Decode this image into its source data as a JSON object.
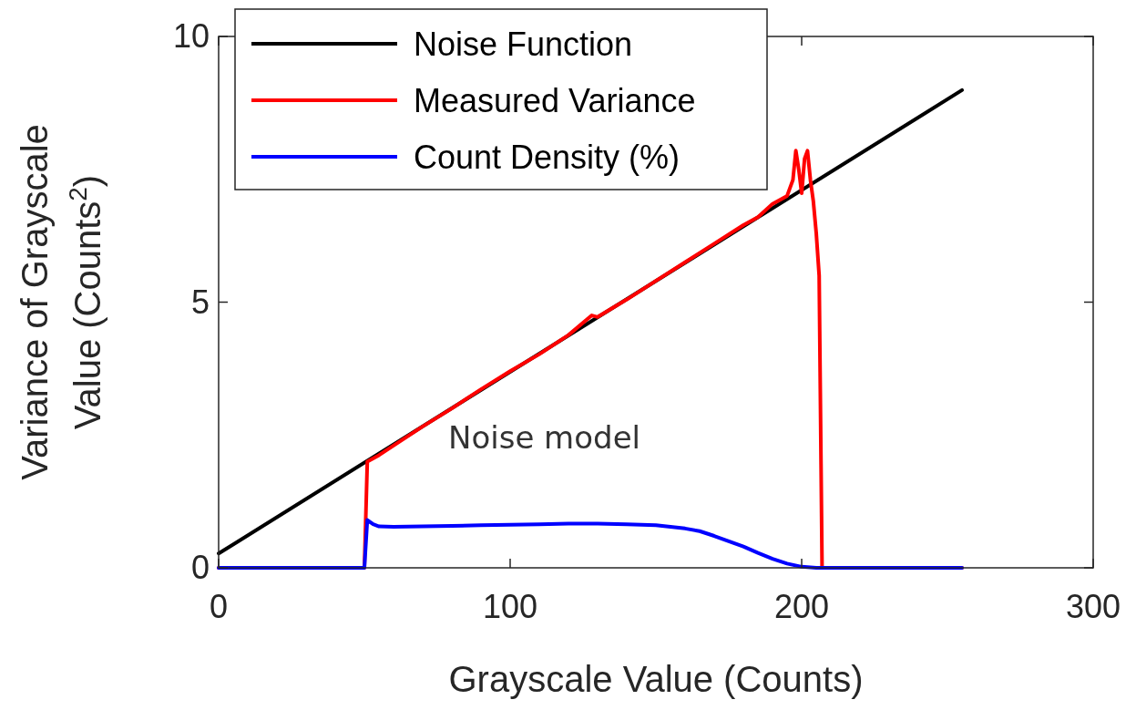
{
  "chart_data": {
    "type": "line",
    "xlabel": "Grayscale Value (Counts)",
    "ylabel": "Variance of Grayscale Value (Counts$^{2}$)",
    "xlim": [
      0,
      300
    ],
    "xticks": [
      0,
      100,
      200,
      300
    ],
    "ylim": [
      0,
      10
    ],
    "yticks": [
      0,
      5,
      10
    ],
    "grid": false,
    "legend": "top left",
    "marker": "none",
    "line_style": "solid",
    "annotations": [
      "Noise model"
    ],
    "series": [
      {
        "name": "Noise Function",
        "color": "#000000",
        "x": [
          0,
          255
        ],
        "values": [
          0.27,
          8.99
        ]
      },
      {
        "name": "Measured Variance",
        "color": "#ff0000",
        "x": [
          0,
          50,
          51,
          55,
          60,
          70,
          80,
          90,
          100,
          110,
          120,
          128,
          130,
          140,
          150,
          160,
          170,
          180,
          185,
          190,
          195,
          197,
          198,
          199,
          200,
          201,
          202,
          203,
          204,
          205,
          206,
          207,
          255
        ],
        "values": [
          0,
          0,
          2.0,
          2.12,
          2.3,
          2.66,
          3.0,
          3.36,
          3.7,
          4.02,
          4.38,
          4.75,
          4.72,
          5.05,
          5.4,
          5.75,
          6.1,
          6.45,
          6.6,
          6.85,
          7.0,
          7.3,
          7.85,
          7.5,
          7.05,
          7.7,
          7.85,
          7.3,
          6.9,
          6.3,
          5.5,
          0,
          0
        ]
      },
      {
        "name": "Count Density (%)",
        "color": "#0000ff",
        "x": [
          0,
          50,
          51,
          53,
          55,
          60,
          70,
          80,
          90,
          100,
          110,
          120,
          130,
          140,
          150,
          160,
          165,
          170,
          175,
          180,
          185,
          190,
          195,
          200,
          205,
          255
        ],
        "values": [
          0,
          0,
          0.9,
          0.82,
          0.78,
          0.77,
          0.78,
          0.79,
          0.8,
          0.81,
          0.82,
          0.83,
          0.83,
          0.82,
          0.8,
          0.74,
          0.69,
          0.6,
          0.5,
          0.4,
          0.28,
          0.17,
          0.08,
          0.02,
          0,
          0
        ]
      }
    ]
  }
}
